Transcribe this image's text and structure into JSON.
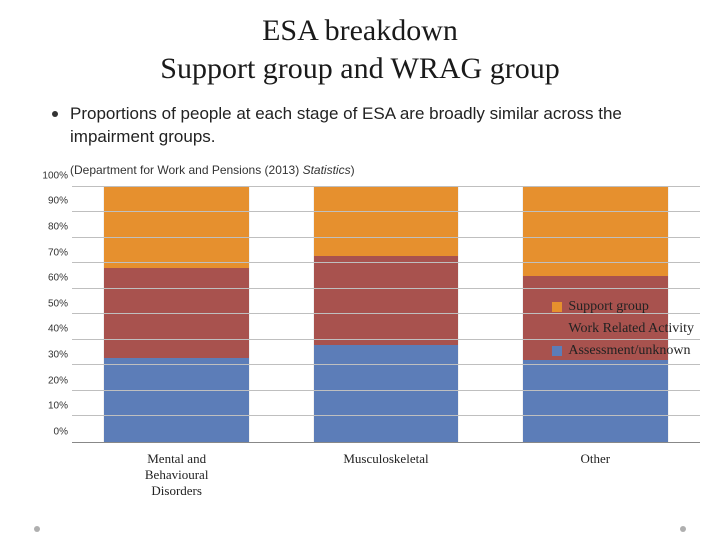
{
  "title_line1": "ESA breakdown",
  "title_line2": "Support group and WRAG group",
  "bullet_text": "Proportions of people at each stage of ESA are broadly similar across the impairment groups.",
  "citation_prefix": "(Department for Work and Pensions (2013) ",
  "citation_italic": "Statistics",
  "citation_suffix": ")",
  "chart": {
    "type": "stacked-bar-100",
    "ylim": [
      0,
      100
    ],
    "ytick_step": 10,
    "y_ticks": [
      "0%",
      "10%",
      "20%",
      "30%",
      "40%",
      "50%",
      "60%",
      "70%",
      "80%",
      "90%",
      "100%"
    ],
    "grid_color": "#bfbfbf",
    "axis_color": "#888888",
    "background_color": "#ffffff",
    "bar_width_pct": 70,
    "axis_label_fontsize": 10,
    "xlabel_fontsize": 13,
    "legend_fontsize": 14,
    "categories": [
      {
        "label_l1": "Mental and",
        "label_l2": "Behavioural",
        "label_l3": "Disorders",
        "segments": [
          33,
          35,
          32
        ]
      },
      {
        "label_l1": "Musculoskeletal",
        "label_l2": "",
        "label_l3": "",
        "segments": [
          38,
          35,
          27
        ]
      },
      {
        "label_l1": "Other",
        "label_l2": "",
        "label_l3": "",
        "segments": [
          32,
          33,
          35
        ]
      }
    ],
    "series": [
      {
        "name": "Assessment/unknown",
        "color": "#5c7db8"
      },
      {
        "name": "Work Related Activity",
        "color": "#a8524e"
      },
      {
        "name": "Support group",
        "color": "#e6902e"
      }
    ],
    "legend_order": [
      {
        "label": "Support group",
        "color": "#e6902e"
      },
      {
        "label": "Work Related Activity",
        "color": "#a8524e"
      },
      {
        "label": "Assessment/unknown",
        "color": "#5c7db8"
      }
    ]
  }
}
